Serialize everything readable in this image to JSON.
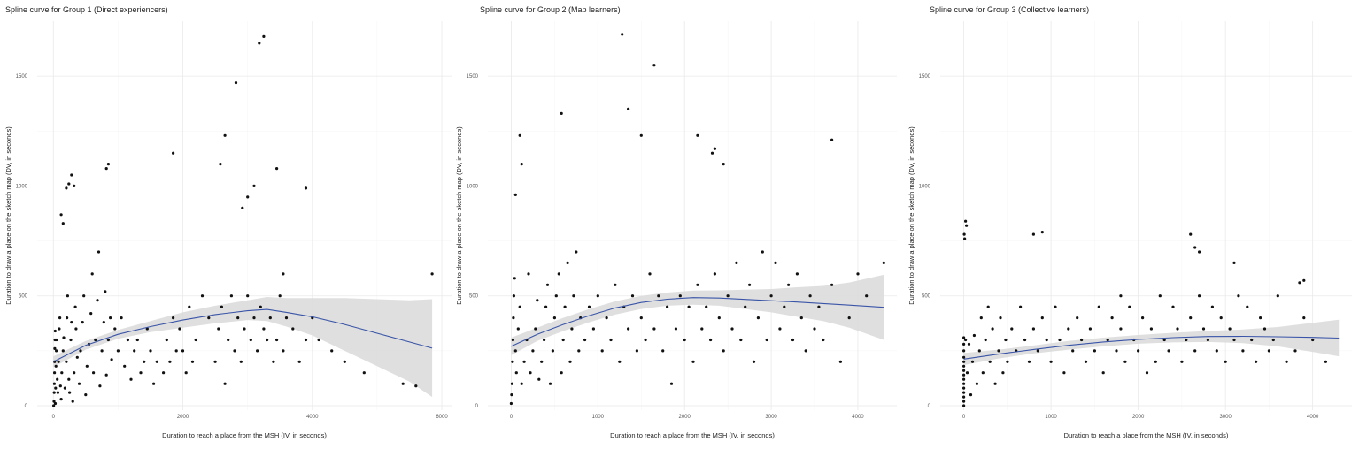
{
  "chart_data": [
    {
      "type": "scatter",
      "title": "Spline curve for Group 1 (Direct experiencers)",
      "xlabel": "Duration to reach a place from the MSH (IV, in seconds)",
      "ylabel": "Duration to draw a place on the sketch map (DV, in seconds)",
      "xlim": [
        -250,
        6150
      ],
      "ylim": [
        -20,
        1750
      ],
      "xticks": [
        0,
        2000,
        4000,
        6000
      ],
      "yticks": [
        0,
        500,
        1000,
        1500
      ],
      "grid": true,
      "colors": {
        "points": "#111111",
        "fit": "#3a55a8",
        "band": "#d9d9d9"
      },
      "fit": {
        "x": [
          0,
          500,
          1000,
          1500,
          2000,
          2500,
          3000,
          3300,
          3600,
          4000,
          4500,
          5000,
          5500,
          5850
        ],
        "y": [
          200,
          275,
          325,
          360,
          390,
          415,
          432,
          438,
          425,
          405,
          370,
          330,
          290,
          262
        ],
        "lower": [
          175,
          255,
          305,
          335,
          355,
          375,
          390,
          385,
          360,
          320,
          250,
          180,
          110,
          40
        ],
        "upper": [
          225,
          295,
          345,
          385,
          425,
          455,
          480,
          495,
          490,
          490,
          490,
          485,
          480,
          485
        ]
      },
      "points": {
        "x": [
          5,
          10,
          12,
          15,
          18,
          20,
          22,
          25,
          28,
          30,
          35,
          40,
          45,
          50,
          60,
          70,
          80,
          90,
          100,
          110,
          120,
          130,
          150,
          160,
          180,
          200,
          210,
          220,
          240,
          250,
          270,
          280,
          300,
          320,
          340,
          350,
          370,
          400,
          420,
          450,
          470,
          500,
          520,
          550,
          580,
          600,
          620,
          650,
          680,
          700,
          720,
          750,
          780,
          800,
          820,
          850,
          880,
          900,
          950,
          1000,
          1050,
          1100,
          1150,
          1200,
          1250,
          1300,
          1350,
          1400,
          1450,
          1500,
          1550,
          1600,
          1700,
          1750,
          1800,
          1850,
          1900,
          1950,
          2000,
          2050,
          2100,
          2150,
          2200,
          2300,
          2400,
          2500,
          2550,
          2600,
          2650,
          2700,
          2750,
          2800,
          2850,
          2900,
          2950,
          3000,
          3050,
          3100,
          3150,
          3200,
          3250,
          3300,
          3350,
          3400,
          3450,
          3500,
          3550,
          3600,
          3700,
          3800,
          3900,
          4000,
          4100,
          4300,
          4500,
          4800,
          5400,
          5600,
          5850,
          2650,
          2820,
          3180,
          3250,
          2580,
          2920,
          1850,
          820,
          850,
          320,
          280,
          240,
          200,
          150,
          120,
          3000,
          3100,
          3450,
          3550,
          3900
        ],
        "y": [
          0,
          20,
          60,
          100,
          150,
          200,
          260,
          300,
          340,
          10,
          80,
          180,
          250,
          300,
          120,
          60,
          200,
          350,
          400,
          90,
          30,
          150,
          250,
          310,
          80,
          200,
          400,
          500,
          120,
          60,
          300,
          380,
          20,
          150,
          450,
          350,
          220,
          100,
          250,
          380,
          500,
          50,
          180,
          280,
          420,
          600,
          150,
          300,
          480,
          700,
          90,
          250,
          380,
          520,
          140,
          300,
          400,
          210,
          350,
          250,
          400,
          180,
          300,
          120,
          250,
          300,
          150,
          200,
          350,
          250,
          100,
          200,
          150,
          300,
          200,
          400,
          250,
          350,
          250,
          150,
          450,
          200,
          300,
          500,
          400,
          200,
          350,
          450,
          100,
          300,
          500,
          250,
          400,
          200,
          350,
          500,
          300,
          400,
          250,
          450,
          350,
          300,
          400,
          200,
          300,
          500,
          250,
          400,
          350,
          200,
          300,
          400,
          300,
          250,
          200,
          150,
          100,
          90,
          600,
          1230,
          1470,
          1650,
          1680,
          1100,
          900,
          1150,
          1080,
          1100,
          1000,
          1050,
          1010,
          990,
          830,
          870,
          950,
          1000,
          1080,
          600,
          990
        ]
      }
    },
    {
      "type": "scatter",
      "title": "Spline curve for Group 2 (Map learners)",
      "xlabel": "Duration to reach a place from the MSH (IV, in seconds)",
      "ylabel": "Duration to draw a place on the sketch map (DV, in seconds)",
      "xlim": [
        -270,
        4450
      ],
      "ylim": [
        -20,
        1750
      ],
      "xticks": [
        0,
        1000,
        2000,
        3000,
        4000
      ],
      "yticks": [
        0,
        500,
        1000,
        1500
      ],
      "grid": true,
      "colors": {
        "points": "#111111",
        "fit": "#3a55a8",
        "band": "#d9d9d9"
      },
      "fit": {
        "x": [
          0,
          300,
          600,
          900,
          1200,
          1500,
          1800,
          2100,
          2400,
          2700,
          3000,
          3300,
          3600,
          3900,
          4300
        ],
        "y": [
          270,
          325,
          370,
          410,
          445,
          470,
          485,
          492,
          490,
          484,
          478,
          472,
          465,
          458,
          448
        ],
        "lower": [
          230,
          295,
          340,
          380,
          415,
          440,
          455,
          460,
          455,
          440,
          425,
          405,
          385,
          355,
          300
        ],
        "upper": [
          310,
          355,
          400,
          440,
          475,
          500,
          515,
          524,
          525,
          528,
          531,
          539,
          545,
          561,
          596
        ]
      },
      "points": {
        "x": [
          0,
          5,
          10,
          15,
          20,
          25,
          30,
          40,
          50,
          60,
          80,
          100,
          120,
          150,
          180,
          200,
          220,
          250,
          280,
          300,
          320,
          350,
          380,
          400,
          420,
          450,
          480,
          500,
          520,
          550,
          580,
          600,
          620,
          650,
          680,
          700,
          720,
          750,
          780,
          800,
          850,
          900,
          950,
          1000,
          1050,
          1100,
          1150,
          1200,
          1250,
          1300,
          1350,
          1400,
          1450,
          1500,
          1550,
          1600,
          1650,
          1700,
          1750,
          1800,
          1850,
          1900,
          1950,
          2000,
          2050,
          2100,
          2150,
          2200,
          2250,
          2300,
          2350,
          2400,
          2450,
          2500,
          2550,
          2600,
          2650,
          2700,
          2750,
          2800,
          2850,
          2900,
          2950,
          3000,
          3050,
          3100,
          3150,
          3200,
          3250,
          3300,
          3350,
          3400,
          3450,
          3500,
          3550,
          3600,
          3700,
          3800,
          3900,
          4000,
          4100,
          4300,
          1280,
          1650,
          1350,
          1500,
          2150,
          2350,
          2320,
          2450,
          3700,
          580,
          50,
          100,
          120
        ],
        "y": [
          10,
          50,
          100,
          200,
          300,
          400,
          500,
          580,
          250,
          150,
          350,
          450,
          100,
          200,
          300,
          600,
          150,
          250,
          350,
          480,
          120,
          200,
          300,
          450,
          550,
          100,
          250,
          400,
          500,
          600,
          150,
          300,
          450,
          650,
          200,
          350,
          500,
          700,
          250,
          400,
          300,
          450,
          350,
          500,
          250,
          400,
          300,
          550,
          200,
          450,
          350,
          500,
          250,
          400,
          300,
          600,
          350,
          500,
          250,
          450,
          100,
          350,
          500,
          300,
          450,
          200,
          550,
          350,
          450,
          300,
          600,
          400,
          250,
          500,
          350,
          650,
          300,
          450,
          550,
          200,
          400,
          700,
          300,
          500,
          650,
          350,
          450,
          550,
          300,
          600,
          400,
          250,
          500,
          350,
          450,
          300,
          550,
          200,
          400,
          600,
          500,
          650,
          1690,
          1550,
          1350,
          1230,
          1230,
          1170,
          1150,
          1100,
          1210,
          1330,
          960,
          1230,
          1100
        ]
      }
    },
    {
      "type": "scatter",
      "title": "Spline curve for Group 3 (Collective learners)",
      "xlabel": "Duration to reach a place from the MSH (IV, in seconds)",
      "ylabel": "Duration to draw a place on the sketch map (DV, in seconds)",
      "xlim": [
        -270,
        4450
      ],
      "ylim": [
        -20,
        1750
      ],
      "xticks": [
        0,
        1000,
        2000,
        3000,
        4000
      ],
      "yticks": [
        0,
        500,
        1000,
        1500
      ],
      "grid": true,
      "colors": {
        "points": "#111111",
        "fit": "#3a55a8",
        "band": "#d9d9d9"
      },
      "fit": {
        "x": [
          0,
          400,
          800,
          1200,
          1600,
          2000,
          2400,
          2800,
          3200,
          3600,
          4000,
          4300
        ],
        "y": [
          212,
          235,
          256,
          275,
          290,
          302,
          310,
          315,
          316,
          314,
          311,
          308
        ],
        "lower": [
          185,
          215,
          238,
          255,
          270,
          282,
          288,
          290,
          285,
          270,
          245,
          225
        ],
        "upper": [
          240,
          255,
          274,
          295,
          310,
          322,
          332,
          340,
          347,
          358,
          377,
          391
        ]
      },
      "points": {
        "x": [
          0,
          0,
          0,
          0,
          0,
          0,
          0,
          0,
          0,
          0,
          0,
          0,
          0,
          0,
          0,
          5,
          10,
          20,
          40,
          60,
          80,
          100,
          120,
          150,
          180,
          200,
          220,
          250,
          280,
          300,
          330,
          360,
          400,
          420,
          450,
          480,
          500,
          550,
          600,
          650,
          700,
          750,
          800,
          850,
          900,
          950,
          1000,
          1050,
          1100,
          1150,
          1200,
          1250,
          1300,
          1350,
          1400,
          1450,
          1500,
          1550,
          1600,
          1650,
          1700,
          1750,
          1800,
          1850,
          1900,
          1950,
          2000,
          2050,
          2100,
          2150,
          2200,
          2250,
          2300,
          2350,
          2400,
          2450,
          2500,
          2550,
          2600,
          2650,
          2700,
          2750,
          2800,
          2850,
          2900,
          2950,
          3000,
          3050,
          3100,
          3150,
          3200,
          3250,
          3300,
          3350,
          3400,
          3450,
          3500,
          3550,
          3600,
          3700,
          3800,
          3900,
          4000,
          4150,
          20,
          30,
          800,
          900,
          1800,
          2600,
          2650,
          2700,
          3100,
          3850,
          3900
        ],
        "y": [
          0,
          20,
          40,
          60,
          80,
          100,
          120,
          140,
          160,
          180,
          200,
          220,
          250,
          280,
          310,
          780,
          760,
          300,
          150,
          280,
          50,
          200,
          320,
          100,
          250,
          400,
          150,
          300,
          450,
          200,
          350,
          100,
          250,
          400,
          150,
          300,
          200,
          350,
          250,
          450,
          300,
          200,
          350,
          250,
          400,
          300,
          200,
          450,
          300,
          150,
          350,
          250,
          400,
          300,
          200,
          350,
          250,
          450,
          150,
          300,
          400,
          250,
          350,
          200,
          450,
          300,
          250,
          400,
          150,
          350,
          200,
          500,
          300,
          250,
          450,
          350,
          200,
          300,
          400,
          250,
          500,
          350,
          300,
          450,
          250,
          400,
          200,
          350,
          300,
          500,
          250,
          450,
          300,
          200,
          400,
          350,
          250,
          300,
          500,
          200,
          250,
          400,
          300,
          200,
          840,
          820,
          780,
          790,
          500,
          780,
          720,
          700,
          650,
          560,
          570
        ]
      }
    }
  ]
}
